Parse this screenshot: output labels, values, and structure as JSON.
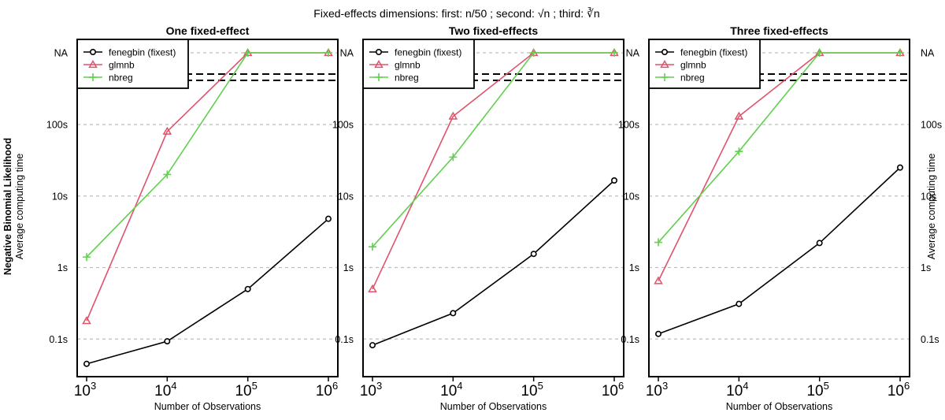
{
  "suptitle": {
    "prefix": "Fixed-effects dimensions: first: ",
    "first_expr": "n/50",
    "middle1": " ; second: ",
    "second_expr": "√n",
    "middle2": " ; third: ",
    "third_expr": "∛n"
  },
  "left_label": {
    "bold": "Negative Binomial Likelihood",
    "normal": "Average computing time"
  },
  "right_label": "Average computing time",
  "chart_data": [
    {
      "type": "line",
      "title": "One fixed-effect",
      "xlabel": "Number of Observations",
      "x": [
        1000,
        10000,
        100000,
        1000000
      ],
      "x_tick_labels": [
        {
          "base": "10",
          "exp": "3"
        },
        {
          "base": "10",
          "exp": "4"
        },
        {
          "base": "10",
          "exp": "5"
        },
        {
          "base": "10",
          "exp": "6"
        }
      ],
      "y_scale": "log",
      "y_ticks": [
        {
          "value": 0.1,
          "label": "0.1s"
        },
        {
          "value": 1,
          "label": "1s"
        },
        {
          "value": 10,
          "label": "10s"
        },
        {
          "value": 100,
          "label": "100s"
        },
        {
          "value": "NA",
          "label": "NA"
        }
      ],
      "grid": "horizontal dashed",
      "legend_placement": "top-left",
      "series": [
        {
          "name": "fenegbin (fixest)",
          "color": "#000000",
          "marker": "circle",
          "values": [
            0.045,
            0.093,
            0.5,
            4.8
          ]
        },
        {
          "name": "glmnb",
          "color": "#DF536B",
          "marker": "triangle",
          "values": [
            0.18,
            80,
            "NA",
            "NA"
          ]
        },
        {
          "name": "nbreg",
          "color": "#61D04F",
          "marker": "plus",
          "values": [
            1.4,
            20,
            "NA",
            "NA"
          ]
        }
      ]
    },
    {
      "type": "line",
      "title": "Two fixed-effects",
      "xlabel": "Number of Observations",
      "x": [
        1000,
        10000,
        100000,
        1000000
      ],
      "x_tick_labels": [
        {
          "base": "10",
          "exp": "3"
        },
        {
          "base": "10",
          "exp": "4"
        },
        {
          "base": "10",
          "exp": "5"
        },
        {
          "base": "10",
          "exp": "6"
        }
      ],
      "y_scale": "log",
      "y_ticks": [
        {
          "value": 0.1,
          "label": "0.1s"
        },
        {
          "value": 1,
          "label": "1s"
        },
        {
          "value": 10,
          "label": "10s"
        },
        {
          "value": 100,
          "label": "100s"
        },
        {
          "value": "NA",
          "label": "NA"
        }
      ],
      "grid": "horizontal dashed",
      "legend_placement": "top-left",
      "series": [
        {
          "name": "fenegbin (fixest)",
          "color": "#000000",
          "marker": "circle",
          "values": [
            0.082,
            0.23,
            1.55,
            16.5
          ]
        },
        {
          "name": "glmnb",
          "color": "#DF536B",
          "marker": "triangle",
          "values": [
            0.5,
            130,
            "NA",
            "NA"
          ]
        },
        {
          "name": "nbreg",
          "color": "#61D04F",
          "marker": "plus",
          "values": [
            1.95,
            35,
            "NA",
            "NA"
          ]
        }
      ]
    },
    {
      "type": "line",
      "title": "Three fixed-effects",
      "xlabel": "Number of Observations",
      "x": [
        1000,
        10000,
        100000,
        1000000
      ],
      "x_tick_labels": [
        {
          "base": "10",
          "exp": "3"
        },
        {
          "base": "10",
          "exp": "4"
        },
        {
          "base": "10",
          "exp": "5"
        },
        {
          "base": "10",
          "exp": "6"
        }
      ],
      "y_scale": "log",
      "y_ticks": [
        {
          "value": 0.1,
          "label": "0.1s"
        },
        {
          "value": 1,
          "label": "1s"
        },
        {
          "value": 10,
          "label": "10s"
        },
        {
          "value": 100,
          "label": "100s"
        },
        {
          "value": "NA",
          "label": "NA"
        }
      ],
      "grid": "horizontal dashed",
      "legend_placement": "top-left",
      "series": [
        {
          "name": "fenegbin (fixest)",
          "color": "#000000",
          "marker": "circle",
          "values": [
            0.118,
            0.31,
            2.2,
            25
          ]
        },
        {
          "name": "glmnb",
          "color": "#DF536B",
          "marker": "triangle",
          "values": [
            0.65,
            130,
            "NA",
            "NA"
          ]
        },
        {
          "name": "nbreg",
          "color": "#61D04F",
          "marker": "plus",
          "values": [
            2.25,
            42,
            "NA",
            "NA"
          ]
        }
      ]
    }
  ]
}
